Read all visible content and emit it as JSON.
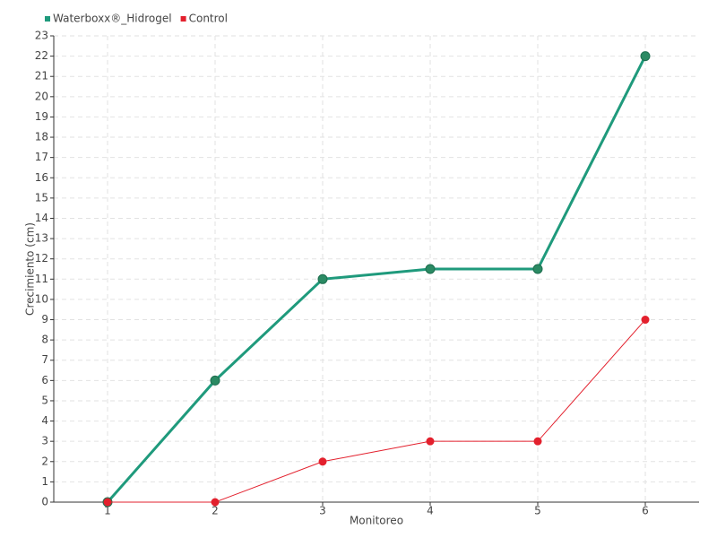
{
  "chart_data": {
    "type": "line",
    "categories": [
      "1",
      "2",
      "3",
      "4",
      "5",
      "6"
    ],
    "series": [
      {
        "name": "Waterboxx®_Hidrogel",
        "color": "#1f9a7c",
        "values": [
          0,
          6,
          11,
          11.5,
          11.5,
          22
        ]
      },
      {
        "name": "Control",
        "color": "#e3202d",
        "values": [
          0,
          0,
          2,
          3,
          3,
          9
        ]
      }
    ],
    "xlabel": "Monitoreo",
    "ylabel": "Crecimiento (cm)",
    "ylim": [
      0,
      23
    ],
    "yticks": [
      0,
      1,
      2,
      3,
      4,
      5,
      6,
      7,
      8,
      9,
      10,
      11,
      12,
      13,
      14,
      15,
      16,
      17,
      18,
      19,
      20,
      21,
      22,
      23
    ],
    "grid": true,
    "legend": "top-left"
  }
}
